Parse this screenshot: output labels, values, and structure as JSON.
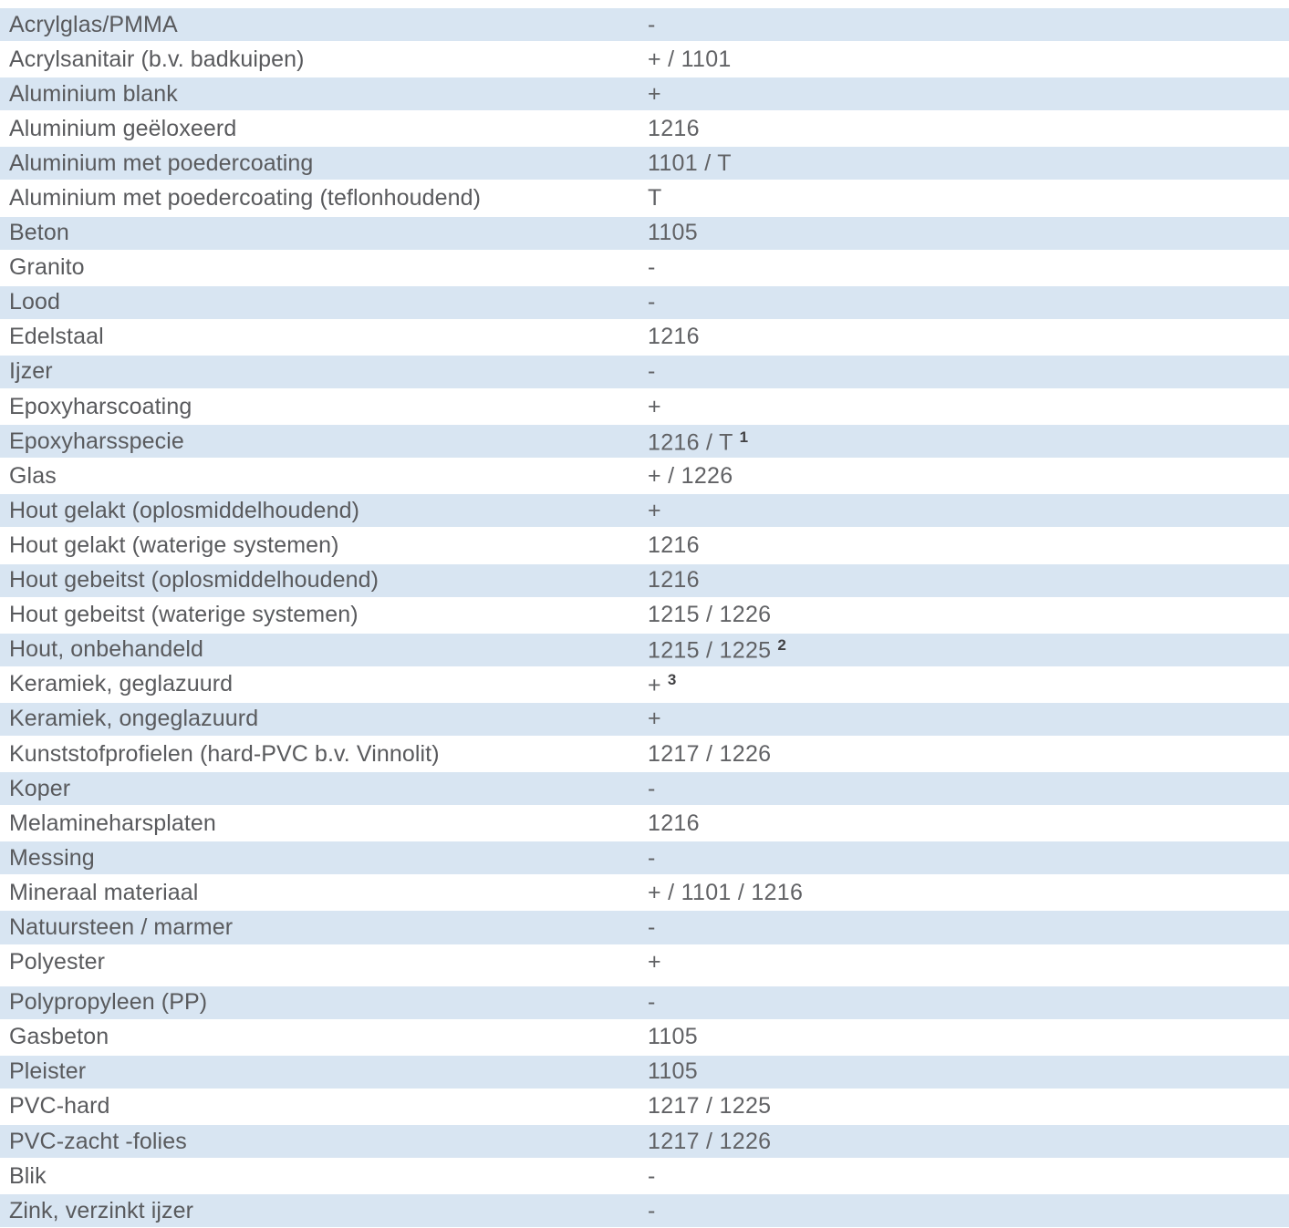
{
  "colors": {
    "row_shade": "#d8e5f2",
    "label_text": "#595a5d",
    "value_text": "#616265",
    "footnote_text": "#414144"
  },
  "table": {
    "rows": [
      {
        "label": "Acrylglas/PMMA",
        "value": "-",
        "sup": ""
      },
      {
        "label": "Acrylsanitair (b.v. badkuipen)",
        "value": "+ / 1101",
        "sup": ""
      },
      {
        "label": "Aluminium blank",
        "value": "+",
        "sup": ""
      },
      {
        "label": "Aluminium geëloxeerd",
        "value": "1216",
        "sup": ""
      },
      {
        "label": "Aluminium met poedercoating",
        "value": "1101 / T",
        "sup": ""
      },
      {
        "label": "Aluminium met poedercoating (teflonhoudend)",
        "value": "T",
        "sup": ""
      },
      {
        "label": "Beton",
        "value": "1105",
        "sup": ""
      },
      {
        "label": "Granito",
        "value": "-",
        "sup": ""
      },
      {
        "label": "Lood",
        "value": "-",
        "sup": ""
      },
      {
        "label": "Edelstaal",
        "value": "1216",
        "sup": ""
      },
      {
        "label": "Ijzer",
        "value": "-",
        "sup": ""
      },
      {
        "label": "Epoxyharscoating",
        "value": "+",
        "sup": ""
      },
      {
        "label": "Epoxyharsspecie",
        "value": "1216 / T",
        "sup": "1"
      },
      {
        "label": "Glas",
        "value": "+ / 1226",
        "sup": ""
      },
      {
        "label": "Hout gelakt (oplosmiddelhoudend)",
        "value": "+",
        "sup": ""
      },
      {
        "label": "Hout gelakt (waterige systemen)",
        "value": "1216",
        "sup": ""
      },
      {
        "label": "Hout gebeitst (oplosmiddelhoudend)",
        "value": "1216",
        "sup": ""
      },
      {
        "label": "Hout gebeitst (waterige systemen)",
        "value": "1215 / 1226",
        "sup": ""
      },
      {
        "label": "Hout, onbehandeld",
        "value": "1215 / 1225",
        "sup": "2"
      },
      {
        "label": "Keramiek, geglazuurd",
        "value": "+",
        "sup": "3"
      },
      {
        "label": "Keramiek, ongeglazuurd",
        "value": "+",
        "sup": ""
      },
      {
        "label": "Kunststofprofielen (hard-PVC b.v. Vinnolit)",
        "value": "1217 / 1226",
        "sup": ""
      },
      {
        "label": "Koper",
        "value": "-",
        "sup": ""
      },
      {
        "label": "Melamineharsplaten",
        "value": "1216",
        "sup": ""
      },
      {
        "label": "Messing",
        "value": "-",
        "sup": ""
      },
      {
        "label": "Mineraal materiaal",
        "value": "+ / 1101 / 1216",
        "sup": ""
      },
      {
        "label": "Natuursteen / marmer",
        "value": "-",
        "sup": ""
      },
      {
        "label": "Polyester",
        "value": "+",
        "sup": ""
      },
      {
        "label": "Polypropyleen (PP)",
        "value": "-",
        "sup": "",
        "gap_before": true
      },
      {
        "label": "Gasbeton",
        "value": "1105",
        "sup": ""
      },
      {
        "label": "Pleister",
        "value": "1105",
        "sup": ""
      },
      {
        "label": "PVC-hard",
        "value": "1217 / 1225",
        "sup": ""
      },
      {
        "label": "PVC-zacht -folies",
        "value": "1217 / 1226",
        "sup": ""
      },
      {
        "label": "Blik",
        "value": "-",
        "sup": ""
      },
      {
        "label": "Zink, verzinkt ijzer",
        "value": "-",
        "sup": ""
      }
    ]
  }
}
